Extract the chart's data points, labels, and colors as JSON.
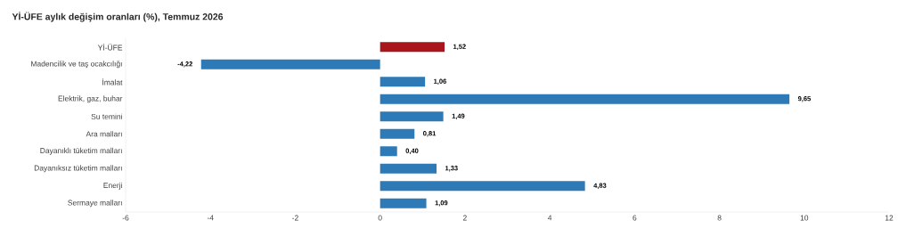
{
  "chart_data": {
    "type": "bar",
    "orientation": "horizontal",
    "title": "Yİ-ÜFE aylık değişim oranları (%), Temmuz 2026",
    "categories": [
      "Yİ-ÜFE",
      "Madencilik ve taş ocakcılığı",
      "İmalat",
      "Elektrik, gaz, buhar",
      "Su temini",
      "Ara malları",
      "Dayanıklı tüketim malları",
      "Dayanıksız tüketim malları",
      "Enerji",
      "Sermaye malları"
    ],
    "values": [
      1.52,
      -4.22,
      1.06,
      9.65,
      1.49,
      0.81,
      0.4,
      1.33,
      4.83,
      1.09
    ],
    "value_labels": [
      "1,52",
      "-4,22",
      "1,06",
      "9,65",
      "1,49",
      "0,81",
      "0,40",
      "1,33",
      "4,83",
      "1,09"
    ],
    "colors": [
      "#a8151b",
      "#2e7ab6",
      "#2e7ab6",
      "#2e7ab6",
      "#2e7ab6",
      "#2e7ab6",
      "#2e7ab6",
      "#2e7ab6",
      "#2e7ab6",
      "#2e7ab6"
    ],
    "xlim": [
      -6,
      12
    ],
    "xticks": [
      -6,
      -4,
      -2,
      0,
      2,
      4,
      6,
      8,
      10,
      12
    ],
    "grid": false
  }
}
